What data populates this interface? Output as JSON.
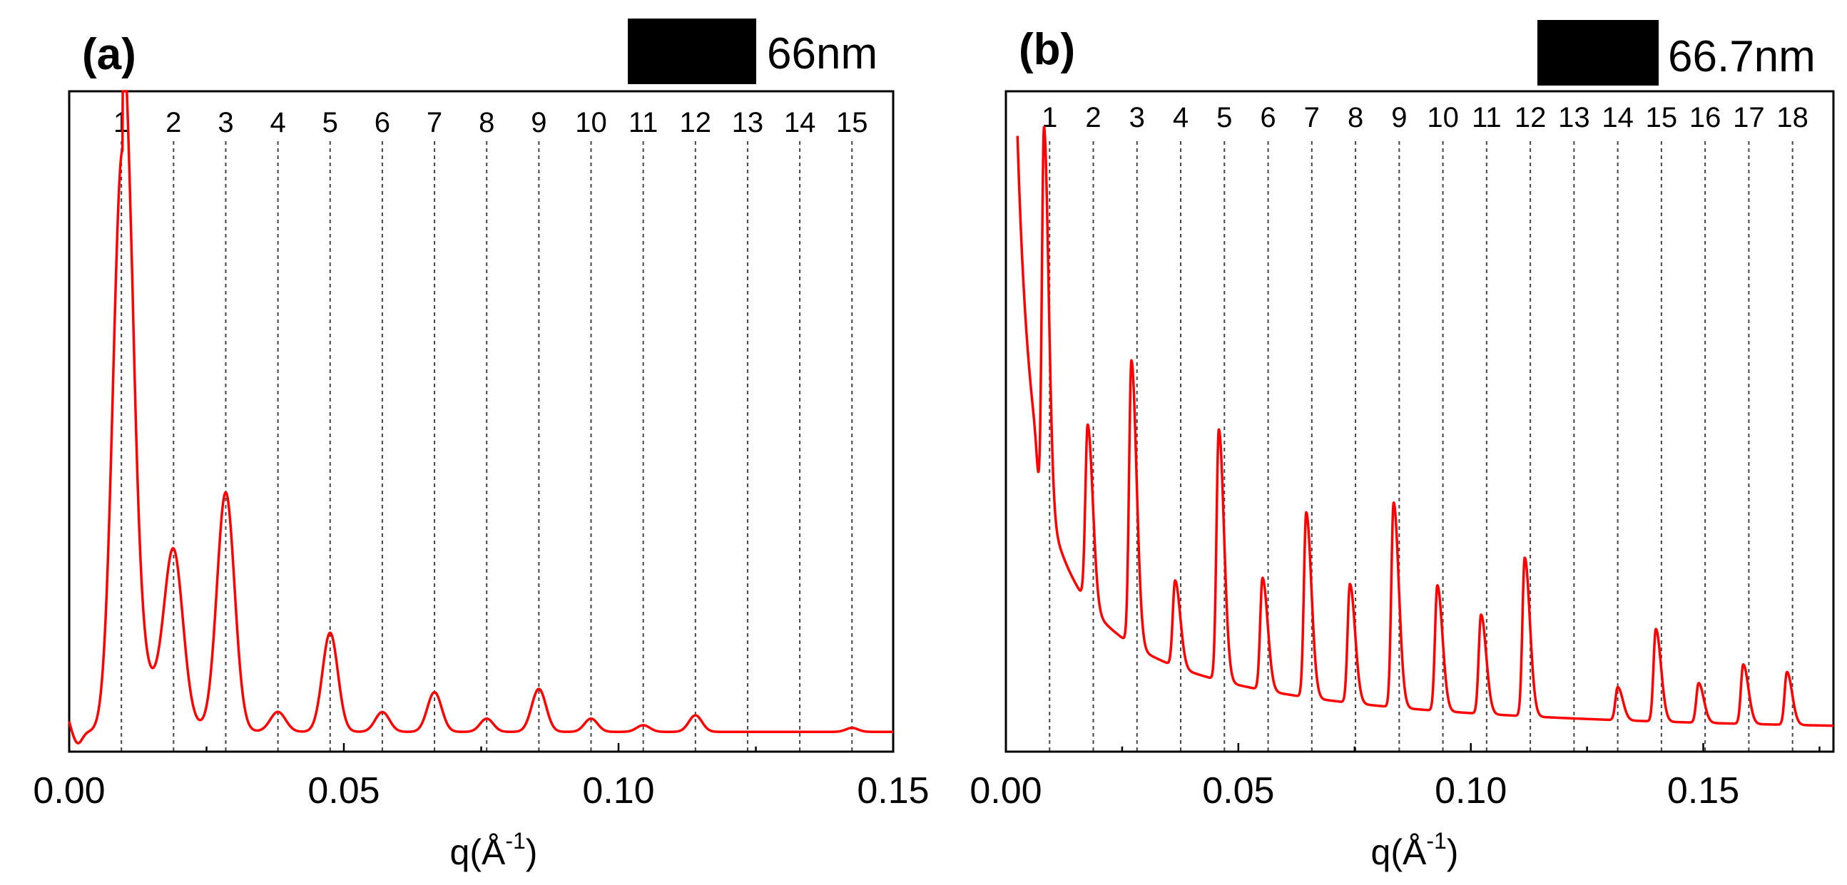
{
  "colors": {
    "curve": "#ff0000",
    "axis": "#000000",
    "guide": "#444444",
    "scale_bar": "#000000"
  },
  "chart_data": [
    {
      "type": "line",
      "panel_label": "(a)",
      "scale_bar_label": "66nm",
      "xlabel": "q(Å",
      "xlabel_sup": "-1",
      "xlabel_close": ")",
      "ylabel": "",
      "xlim": [
        0.0,
        0.15
      ],
      "ylim": [
        0,
        1
      ],
      "x_ticks": [
        0.0,
        0.05,
        0.1,
        0.15
      ],
      "x_tick_labels": [
        "0.00",
        "0.05",
        "0.10",
        "0.15"
      ],
      "order_labels": [
        "1",
        "2",
        "3",
        "4",
        "5",
        "6",
        "7",
        "8",
        "9",
        "10",
        "11",
        "12",
        "13",
        "14",
        "15"
      ],
      "order_positions": [
        0.0095,
        0.019,
        0.0285,
        0.038,
        0.0475,
        0.057,
        0.0665,
        0.076,
        0.0855,
        0.095,
        0.1045,
        0.114,
        0.1235,
        0.133,
        0.1425
      ],
      "baseline": 0.03,
      "start_rise": 0.02,
      "peaks": [
        {
          "x": 0.0097,
          "h": 0.88,
          "w": 0.0017
        },
        {
          "x": 0.019,
          "h": 0.25,
          "w": 0.0017
        },
        {
          "x": 0.0285,
          "h": 0.36,
          "w": 0.0016
        },
        {
          "x": 0.038,
          "h": 0.03,
          "w": 0.0014
        },
        {
          "x": 0.0475,
          "h": 0.15,
          "w": 0.0014
        },
        {
          "x": 0.057,
          "h": 0.03,
          "w": 0.0013
        },
        {
          "x": 0.0665,
          "h": 0.06,
          "w": 0.0013
        },
        {
          "x": 0.076,
          "h": 0.02,
          "w": 0.0012
        },
        {
          "x": 0.0855,
          "h": 0.065,
          "w": 0.0013
        },
        {
          "x": 0.095,
          "h": 0.02,
          "w": 0.0012
        },
        {
          "x": 0.1045,
          "h": 0.01,
          "w": 0.0012
        },
        {
          "x": 0.114,
          "h": 0.025,
          "w": 0.0012
        },
        {
          "x": 0.1425,
          "h": 0.006,
          "w": 0.0011
        }
      ]
    },
    {
      "type": "line",
      "panel_label": "(b)",
      "scale_bar_label": "66.7nm",
      "xlabel": "q(Å",
      "xlabel_sup": "-1",
      "xlabel_close": ")",
      "ylabel": "",
      "xlim": [
        0.0,
        0.178
      ],
      "ylim": [
        0,
        1
      ],
      "x_ticks": [
        0.0,
        0.05,
        0.1,
        0.15
      ],
      "x_tick_labels": [
        "0.00",
        "0.05",
        "0.10",
        "0.15"
      ],
      "order_labels": [
        "1",
        "2",
        "3",
        "4",
        "5",
        "6",
        "7",
        "8",
        "9",
        "10",
        "11",
        "12",
        "13",
        "14",
        "15",
        "16",
        "17",
        "18"
      ],
      "order_positions": [
        0.0094,
        0.0188,
        0.0282,
        0.0376,
        0.047,
        0.0564,
        0.0658,
        0.0752,
        0.0846,
        0.094,
        0.1034,
        0.1128,
        0.1222,
        0.1316,
        0.141,
        0.1504,
        0.1598,
        0.1692
      ],
      "curve_start": 0.0025,
      "peaks": [
        {
          "x": 0.0082,
          "h": 0.55,
          "w": 0.00045
        },
        {
          "x": 0.0176,
          "h": 0.27,
          "w": 0.0005
        },
        {
          "x": 0.027,
          "h": 0.43,
          "w": 0.0005
        },
        {
          "x": 0.0364,
          "h": 0.13,
          "w": 0.0005
        },
        {
          "x": 0.0458,
          "h": 0.38,
          "w": 0.0005
        },
        {
          "x": 0.0552,
          "h": 0.17,
          "w": 0.0005
        },
        {
          "x": 0.0646,
          "h": 0.28,
          "w": 0.0005
        },
        {
          "x": 0.074,
          "h": 0.18,
          "w": 0.0005
        },
        {
          "x": 0.0834,
          "h": 0.31,
          "w": 0.0005
        },
        {
          "x": 0.0928,
          "h": 0.19,
          "w": 0.0005
        },
        {
          "x": 0.1022,
          "h": 0.15,
          "w": 0.0005
        },
        {
          "x": 0.1116,
          "h": 0.24,
          "w": 0.0005
        },
        {
          "x": 0.1316,
          "h": 0.05,
          "w": 0.0005
        },
        {
          "x": 0.1398,
          "h": 0.14,
          "w": 0.0005
        },
        {
          "x": 0.149,
          "h": 0.06,
          "w": 0.0005
        },
        {
          "x": 0.1586,
          "h": 0.09,
          "w": 0.0005
        },
        {
          "x": 0.168,
          "h": 0.08,
          "w": 0.0005
        }
      ]
    }
  ]
}
